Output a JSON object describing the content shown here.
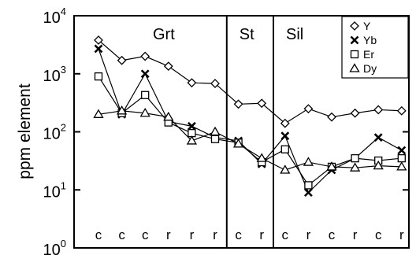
{
  "chart_data": {
    "type": "line",
    "y_scale": "log",
    "ylim": [
      1,
      10000
    ],
    "ylabel": "ppm element",
    "yticks": [
      {
        "value": 1,
        "base": "10",
        "exp": "0"
      },
      {
        "value": 10,
        "base": "10",
        "exp": "1"
      },
      {
        "value": 100,
        "base": "10",
        "exp": "2"
      },
      {
        "value": 1000,
        "base": "10",
        "exp": "3"
      },
      {
        "value": 10000,
        "base": "10",
        "exp": "4"
      }
    ],
    "categories": [
      "c",
      "c",
      "c",
      "r",
      "r",
      "r",
      "c",
      "r",
      "c",
      "r",
      "c",
      "r",
      "c",
      "r"
    ],
    "zones": [
      {
        "label": "Grt",
        "start": 0,
        "end": 5
      },
      {
        "label": "St",
        "start": 6,
        "end": 7
      },
      {
        "label": "Sil",
        "start": 8,
        "end": 13
      }
    ],
    "legend_position": "top-right",
    "series": [
      {
        "name": "Y",
        "marker": "diamond",
        "values": [
          3800,
          1700,
          2000,
          1350,
          700,
          680,
          300,
          310,
          140,
          250,
          180,
          210,
          240,
          230
        ]
      },
      {
        "name": "Yb",
        "marker": "cross",
        "values": [
          2700,
          200,
          1000,
          150,
          125,
          80,
          70,
          28,
          85,
          9,
          22,
          35,
          80,
          48
        ]
      },
      {
        "name": "Er",
        "marker": "square",
        "values": [
          900,
          210,
          430,
          145,
          95,
          75,
          65,
          30,
          50,
          12,
          25,
          35,
          32,
          35
        ]
      },
      {
        "name": "Dy",
        "marker": "triangle",
        "values": [
          200,
          230,
          210,
          180,
          70,
          100,
          62,
          35,
          22,
          30,
          25,
          24,
          26,
          25
        ]
      }
    ]
  }
}
